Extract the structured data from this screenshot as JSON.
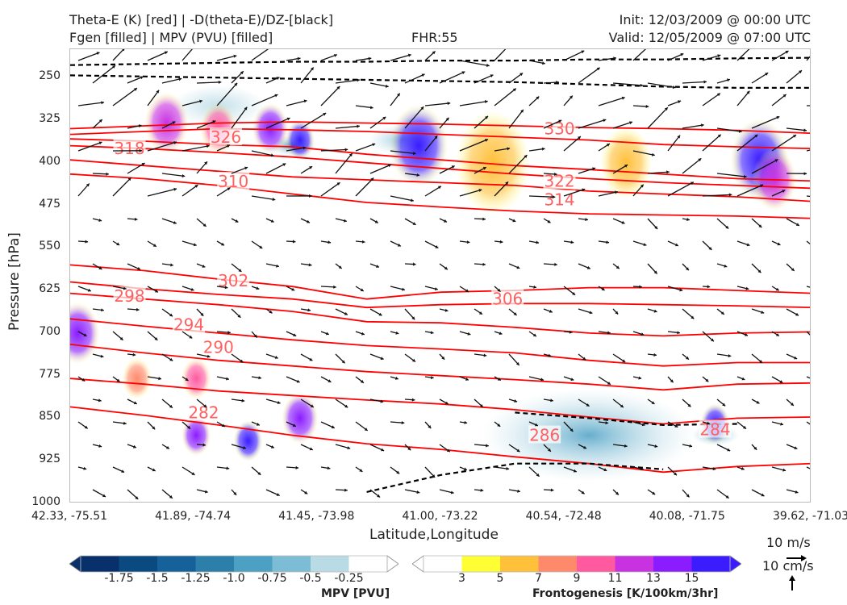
{
  "header": {
    "title_left_1": "Theta-E (K) [red] | -D(theta-E)/DZ-[black]",
    "title_left_2": "Fgen [filled] | MPV (PVU) [filled]",
    "fhr": "FHR:55",
    "init": "Init: 12/03/2009 @ 00:00 UTC",
    "valid": "Valid: 12/05/2009 @ 07:00 UTC"
  },
  "chart_data": {
    "type": "cross-section",
    "ylabel": "Pressure [hPa]",
    "xlabel": "Latitude,Longitude",
    "yticks": [
      "250",
      "325",
      "400",
      "475",
      "550",
      "625",
      "700",
      "775",
      "850",
      "925",
      "1000"
    ],
    "ylim": [
      1000,
      200
    ],
    "xticks": [
      "42.33, -75.51",
      "41.89, -74.74",
      "41.45, -73.98",
      "41.00, -73.22",
      "40.54, -72.48",
      "40.08, -71.75",
      "39.62, -71.03"
    ],
    "theta_e_contours": [
      {
        "label": "330",
        "color": "#ff0000",
        "y": [
          340,
          335,
          330,
          328,
          330,
          332,
          335,
          338,
          340,
          343,
          348
        ]
      },
      {
        "label": "326",
        "color": "#ff0000",
        "y": [
          350,
          345,
          340,
          342,
          345,
          350,
          355,
          360,
          368,
          372,
          375
        ]
      },
      {
        "label": "322",
        "color": "#ff0000",
        "y": [
          358,
          362,
          368,
          372,
          385,
          395,
          405,
          412,
          420,
          428,
          432
        ]
      },
      {
        "label": "318",
        "color": "#ff0000",
        "y": [
          370,
          375,
          382,
          390,
          400,
          410,
          420,
          428,
          435,
          440,
          445
        ]
      },
      {
        "label": "314",
        "color": "#ff0000",
        "y": [
          395,
          405,
          415,
          425,
          430,
          435,
          440,
          450,
          455,
          460,
          468
        ]
      },
      {
        "label": "310",
        "color": "#ff0000",
        "y": [
          420,
          428,
          440,
          455,
          470,
          478,
          485,
          490,
          492,
          494,
          498
        ]
      },
      {
        "label": "306",
        "color": "#ff0000",
        "y": [
          580,
          590,
          605,
          618,
          640,
          628,
          625,
          620,
          620,
          625,
          630
        ]
      },
      {
        "label": "302",
        "color": "#ff0000",
        "y": [
          610,
          622,
          632,
          640,
          655,
          650,
          648,
          648,
          650,
          652,
          655
        ]
      },
      {
        "label": "298",
        "color": "#ff0000",
        "y": [
          630,
          640,
          650,
          662,
          680,
          682,
          690,
          700,
          705,
          700,
          698
        ]
      },
      {
        "label": "294",
        "color": "#ff0000",
        "y": [
          675,
          688,
          700,
          712,
          722,
          728,
          735,
          748,
          758,
          752,
          752
        ]
      },
      {
        "label": "290",
        "color": "#ff0000",
        "y": [
          720,
          735,
          748,
          758,
          768,
          775,
          782,
          790,
          800,
          790,
          788
        ]
      },
      {
        "label": "286",
        "color": "#ff0000",
        "y": [
          780,
          790,
          802,
          810,
          818,
          825,
          835,
          848,
          860,
          850,
          848
        ]
      },
      {
        "label": "282",
        "color": "#ff0000",
        "y": [
          830,
          845,
          862,
          880,
          895,
          905,
          918,
          930,
          945,
          935,
          930
        ]
      }
    ],
    "contour_labels": [
      {
        "text": "330",
        "x": 0.66,
        "p": 340
      },
      {
        "text": "326",
        "x": 0.21,
        "p": 355
      },
      {
        "text": "322",
        "x": 0.66,
        "p": 432
      },
      {
        "text": "318",
        "x": 0.08,
        "p": 375
      },
      {
        "text": "314",
        "x": 0.66,
        "p": 465
      },
      {
        "text": "310",
        "x": 0.22,
        "p": 433
      },
      {
        "text": "306",
        "x": 0.59,
        "p": 640
      },
      {
        "text": "302",
        "x": 0.22,
        "p": 608
      },
      {
        "text": "298",
        "x": 0.08,
        "p": 635
      },
      {
        "text": "294",
        "x": 0.16,
        "p": 685
      },
      {
        "text": "290",
        "x": 0.2,
        "p": 725
      },
      {
        "text": "286",
        "x": 0.64,
        "p": 880
      },
      {
        "text": "284",
        "x": 0.87,
        "p": 870
      },
      {
        "text": "282",
        "x": 0.18,
        "p": 840
      }
    ],
    "fgen_blobs": [
      {
        "x": 0.13,
        "p": 330,
        "r": 0.03,
        "v": 11
      },
      {
        "x": 0.2,
        "p": 340,
        "r": 0.025,
        "v": 9
      },
      {
        "x": 0.27,
        "p": 340,
        "r": 0.025,
        "v": 13
      },
      {
        "x": 0.31,
        "p": 360,
        "r": 0.02,
        "v": 15
      },
      {
        "x": 0.47,
        "p": 370,
        "r": 0.04,
        "v": 15
      },
      {
        "x": 0.57,
        "p": 400,
        "r": 0.05,
        "v": 5
      },
      {
        "x": 0.75,
        "p": 400,
        "r": 0.035,
        "v": 5
      },
      {
        "x": 0.93,
        "p": 395,
        "r": 0.04,
        "v": 15
      },
      {
        "x": 0.95,
        "p": 430,
        "r": 0.03,
        "v": 11
      },
      {
        "x": 0.01,
        "p": 700,
        "r": 0.03,
        "v": 13
      },
      {
        "x": 0.09,
        "p": 780,
        "r": 0.02,
        "v": 7
      },
      {
        "x": 0.17,
        "p": 780,
        "r": 0.02,
        "v": 9
      },
      {
        "x": 0.24,
        "p": 890,
        "r": 0.02,
        "v": 15
      },
      {
        "x": 0.31,
        "p": 850,
        "r": 0.025,
        "v": 13
      },
      {
        "x": 0.17,
        "p": 880,
        "r": 0.02,
        "v": 13
      },
      {
        "x": 0.87,
        "p": 860,
        "r": 0.02,
        "v": 15
      }
    ],
    "mpv_blobs": [
      {
        "x": 0.7,
        "p": 880,
        "r": 0.09,
        "v": -0.75
      },
      {
        "x": 0.45,
        "p": 360,
        "r": 0.03,
        "v": -0.5
      },
      {
        "x": 0.3,
        "p": 370,
        "r": 0.02,
        "v": -1.0
      },
      {
        "x": 0.87,
        "p": 880,
        "r": 0.02,
        "v": -0.75
      },
      {
        "x": 0.2,
        "p": 300,
        "r": 0.04,
        "v": -0.25
      }
    ],
    "stability_contours": [
      {
        "color": "#000000",
        "y": [
          228,
          226,
          224,
          222,
          222,
          220,
          220,
          218,
          218,
          216,
          215
        ]
      },
      {
        "color": "#000000",
        "y": [
          246,
          248,
          250,
          252,
          254,
          256,
          258,
          262,
          266,
          268,
          268
        ]
      },
      {
        "color": "#000000",
        "y": [
          null,
          null,
          null,
          null,
          null,
          null,
          840,
          850,
          862,
          860,
          null
        ]
      },
      {
        "color": "#000000",
        "y": [
          null,
          null,
          null,
          null,
          980,
          950,
          930,
          930,
          940,
          null,
          null
        ]
      }
    ]
  },
  "wind_key": {
    "label_ms": "10 m/s",
    "label_cms": "10 cm/s"
  },
  "colorbars": {
    "mpv": {
      "title": "MPV [PVU]",
      "colors": [
        "#08306b",
        "#0b4a80",
        "#16619a",
        "#2c7fa8",
        "#4ba0c4",
        "#7dbcd5",
        "#b9dbe6",
        "#ffffff"
      ],
      "labels": [
        "-1.75",
        "-1.5",
        "-1.25",
        "-1.0",
        "-0.75",
        "-0.5",
        "-0.25"
      ]
    },
    "fgen": {
      "title": "Frontogenesis [K/100km/3hr]",
      "colors": [
        "#ffffff",
        "#ffff33",
        "#ffc03a",
        "#ff8a6b",
        "#ff5aa0",
        "#c832e0",
        "#8a1cff",
        "#3a1cff"
      ],
      "labels": [
        "3",
        "5",
        "7",
        "9",
        "11",
        "13",
        "15"
      ]
    }
  }
}
